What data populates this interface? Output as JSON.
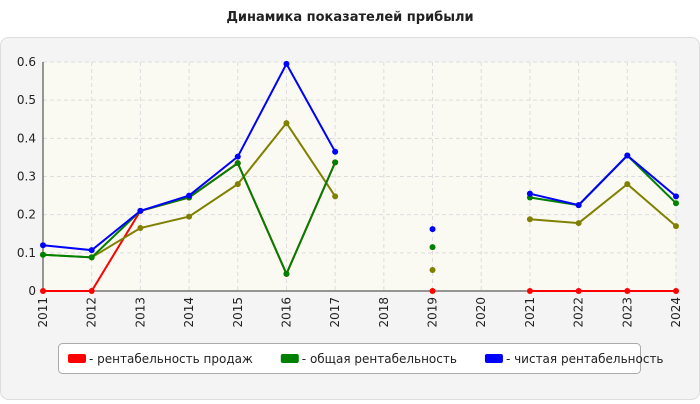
{
  "chart_data": {
    "type": "line",
    "title": "Динамика показателей прибыли",
    "categories": [
      "2011",
      "2012",
      "2013",
      "2014",
      "2015",
      "2016",
      "2017",
      "2018",
      "2019",
      "2020",
      "2021",
      "2022",
      "2023",
      "2024"
    ],
    "series": [
      {
        "name": "- рентабельность продаж",
        "color": "#ff0000",
        "values": [
          0,
          0,
          0.21,
          0.245,
          0.335,
          0.045,
          0.337,
          null,
          0,
          null,
          0,
          0,
          0,
          0
        ]
      },
      {
        "color": "#808000",
        "values": [
          0.095,
          0.088,
          0.165,
          0.195,
          0.28,
          0.44,
          0.248,
          null,
          0.055,
          null,
          0.188,
          0.178,
          0.28,
          0.17
        ]
      },
      {
        "name": "- общая рентабельность",
        "color": "#008000",
        "values": [
          0.095,
          0.088,
          0.21,
          0.245,
          0.335,
          0.045,
          0.337,
          null,
          0.115,
          null,
          0.245,
          0.225,
          0.355,
          0.23
        ]
      },
      {
        "name": "- чистая рентабельность",
        "color": "#0000ff",
        "values": [
          0.12,
          0.107,
          0.21,
          0.25,
          0.352,
          0.595,
          0.365,
          null,
          0.162,
          null,
          0.255,
          0.225,
          0.355,
          0.248
        ]
      }
    ],
    "ylim": [
      0,
      0.6
    ],
    "yticks": [
      0,
      0.1,
      0.2,
      0.3,
      0.4,
      0.5,
      0.6
    ],
    "grid": true
  }
}
